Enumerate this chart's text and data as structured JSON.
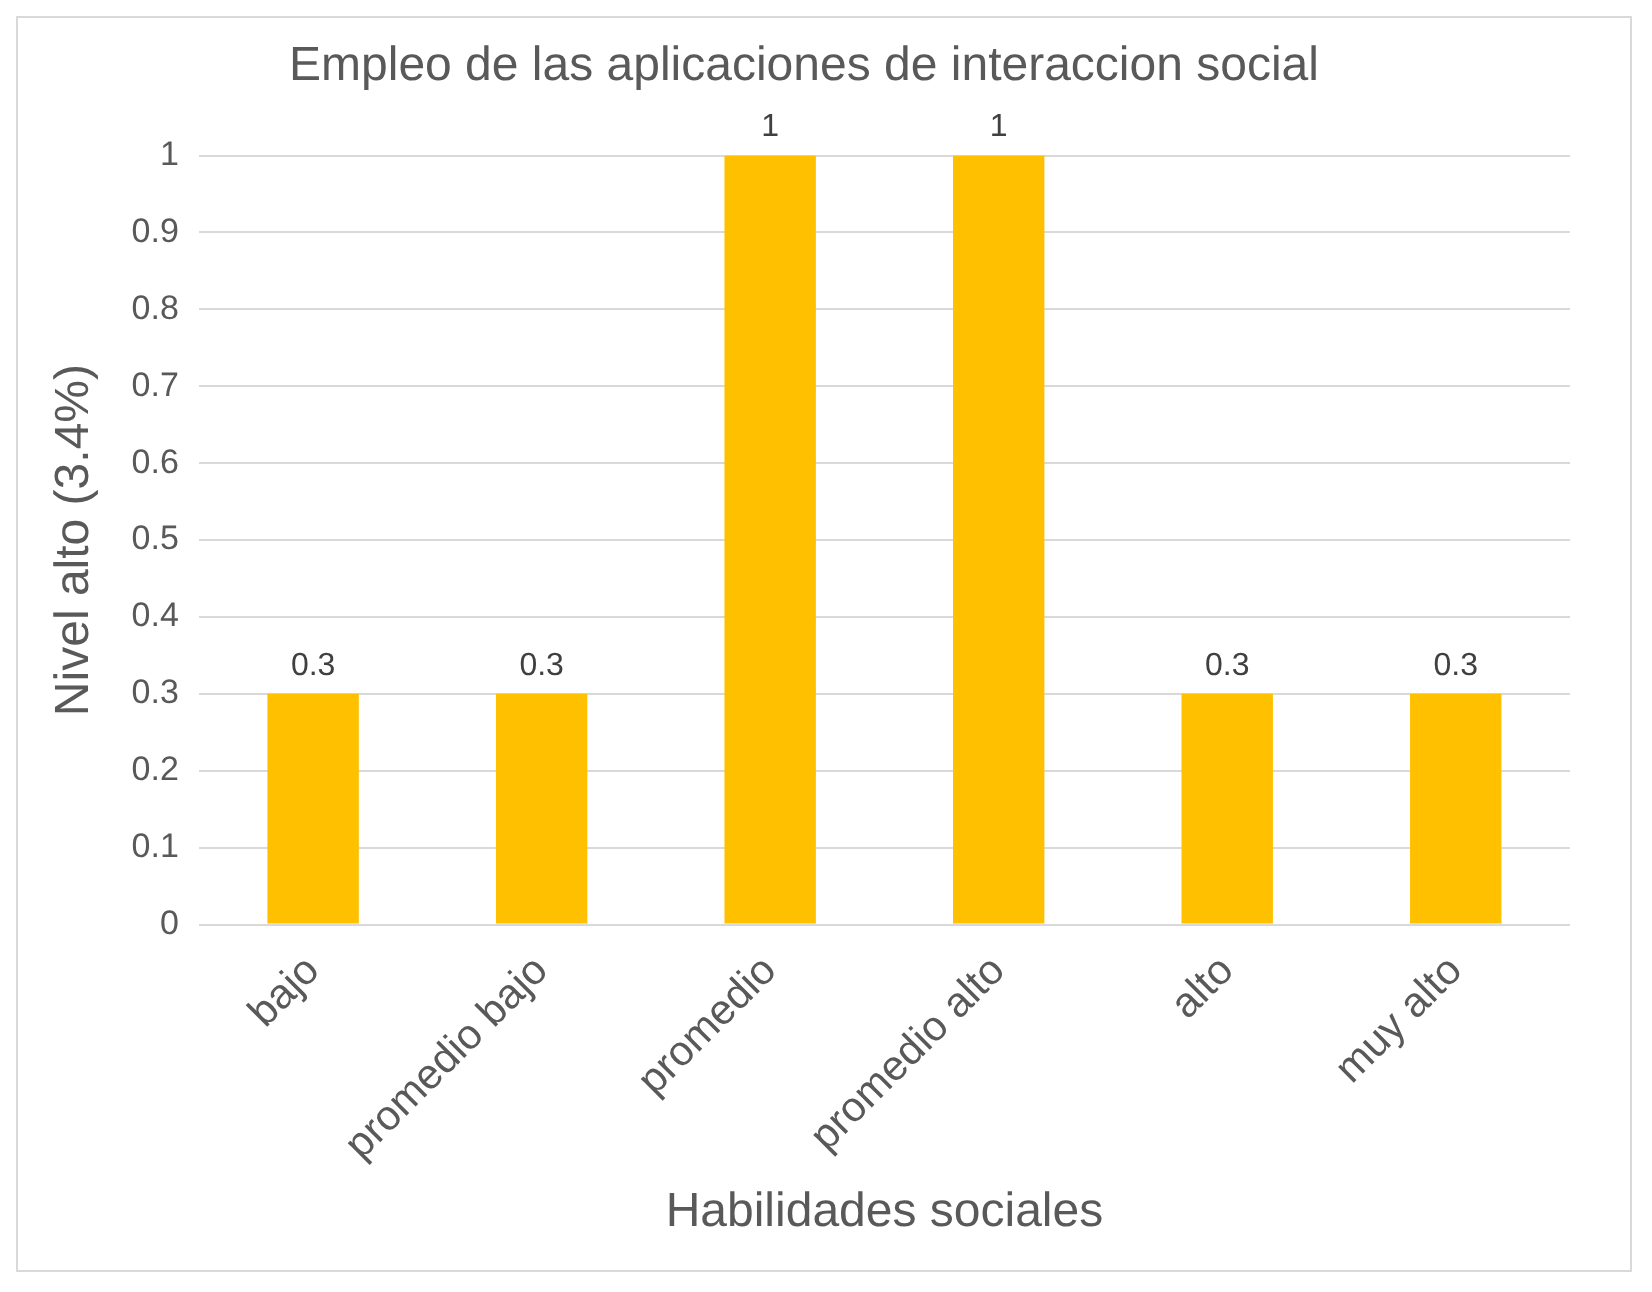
{
  "chart_data": {
    "type": "bar",
    "title": "Empleo de las aplicaciones de interaccion social",
    "xlabel": "Habilidades sociales",
    "ylabel": "Nivel alto (3.4%)",
    "categories": [
      "bajo",
      "promedio bajo",
      "promedio",
      "promedio alto",
      "alto",
      "muy alto"
    ],
    "values": [
      0.3,
      0.3,
      1,
      1,
      0.3,
      0.3
    ],
    "color": "#ffc000",
    "ylim": [
      0,
      1
    ],
    "yticks": [
      0,
      0.1,
      0.2,
      0.3,
      0.4,
      0.5,
      0.6,
      0.7,
      0.8,
      0.9,
      1
    ],
    "grid": "y",
    "data_labels": true,
    "legend": false
  }
}
